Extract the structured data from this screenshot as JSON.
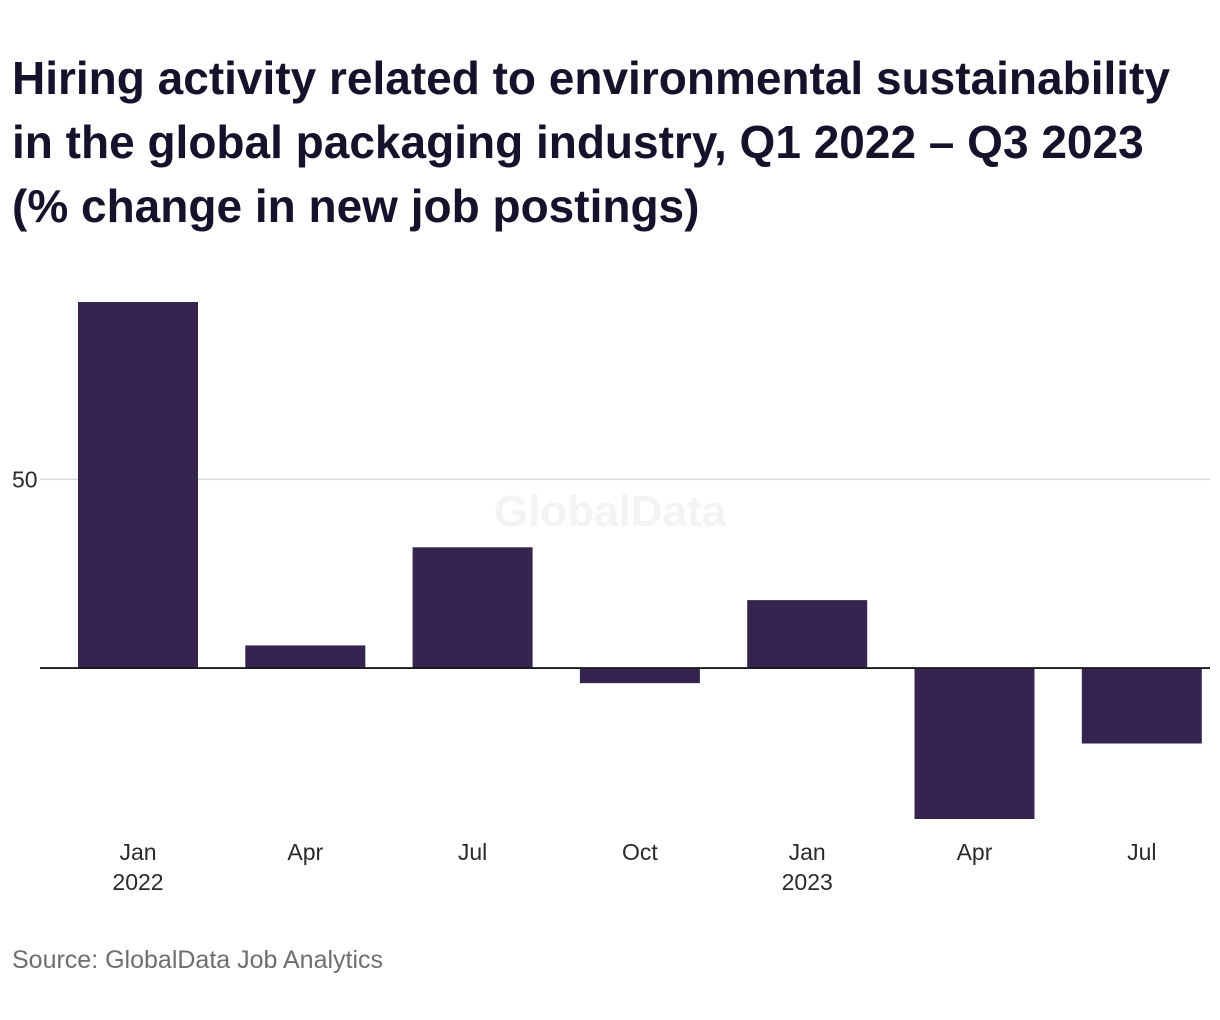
{
  "colors": {
    "bar": "#352450",
    "gridline": "#d9d9d9",
    "baseline": "#1a1a1a"
  },
  "chart_data": {
    "type": "bar",
    "title": "Hiring activity related to environmental sustainability in the global packaging industry, Q1 2022 – Q3 2023 (% change in new job postings)",
    "categories": [
      "Jan 2022",
      "Apr",
      "Jul",
      "Oct",
      "Jan 2023",
      "Apr",
      "Jul"
    ],
    "category_labels": [
      [
        "Jan",
        "2022"
      ],
      [
        "Apr"
      ],
      [
        "Jul"
      ],
      [
        "Oct"
      ],
      [
        "Jan",
        "2023"
      ],
      [
        "Apr"
      ],
      [
        "Jul"
      ]
    ],
    "values": [
      97,
      6,
      32,
      -4,
      18,
      -40,
      -20
    ],
    "ylim": [
      -40,
      97
    ],
    "yticks": [
      50
    ],
    "grid": true,
    "legend": false
  },
  "watermark": "GlobalData",
  "source": "Source: GlobalData Job Analytics"
}
